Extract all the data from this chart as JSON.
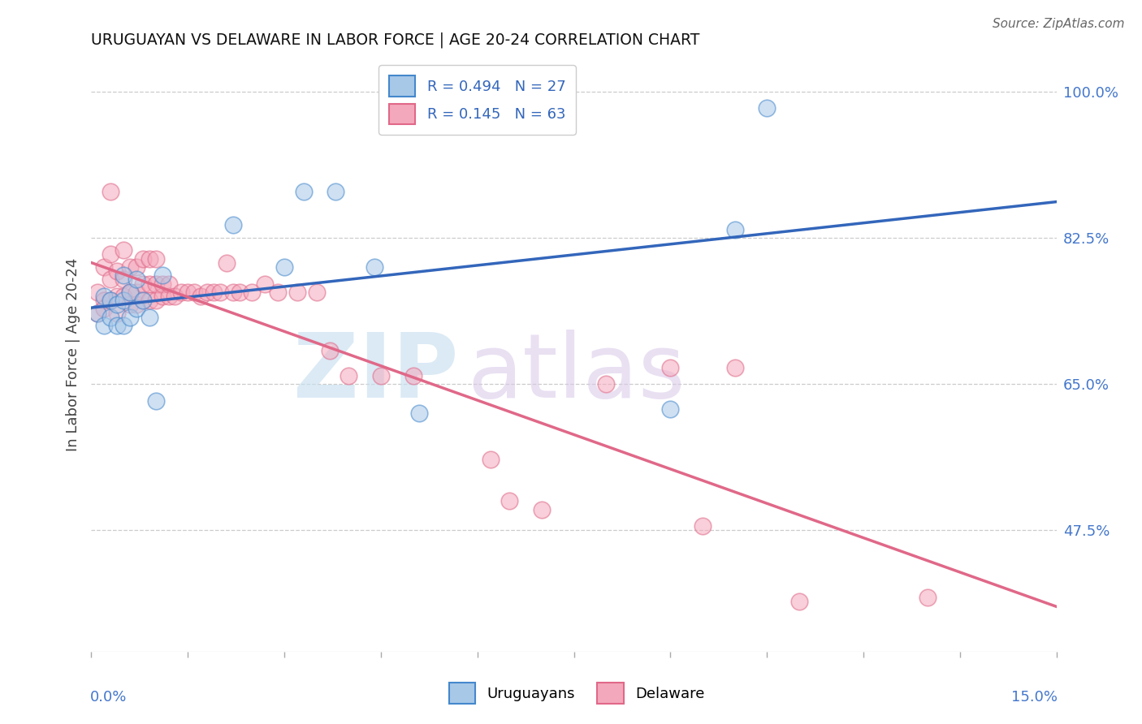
{
  "title": "URUGUAYAN VS DELAWARE IN LABOR FORCE | AGE 20-24 CORRELATION CHART",
  "source": "Source: ZipAtlas.com",
  "ylabel": "In Labor Force | Age 20-24",
  "right_ytick_values": [
    0.475,
    0.65,
    0.825,
    1.0
  ],
  "right_ytick_labels": [
    "47.5%",
    "65.0%",
    "82.5%",
    "100.0%"
  ],
  "legend_entries": [
    "R = 0.494   N = 27",
    "R = 0.145   N = 63"
  ],
  "legend_labels": [
    "Uruguayans",
    "Delaware"
  ],
  "uruguayan_color_fill": "#a8c8e8",
  "uruguayan_color_edge": "#4488cc",
  "delaware_color_fill": "#f4a8bc",
  "delaware_color_edge": "#e06888",
  "blue_line_color": "#3366bb",
  "pink_line_color": "#e06888",
  "background": "#ffffff",
  "xlim": [
    0.0,
    0.15
  ],
  "ylim": [
    0.33,
    1.04
  ],
  "uruguayan_x": [
    0.001,
    0.002,
    0.002,
    0.003,
    0.003,
    0.004,
    0.004,
    0.005,
    0.005,
    0.005,
    0.006,
    0.006,
    0.007,
    0.007,
    0.008,
    0.009,
    0.01,
    0.011,
    0.022,
    0.03,
    0.033,
    0.038,
    0.044,
    0.051,
    0.09,
    0.1,
    0.105
  ],
  "uruguayan_y": [
    0.735,
    0.72,
    0.755,
    0.73,
    0.75,
    0.72,
    0.745,
    0.72,
    0.75,
    0.78,
    0.73,
    0.76,
    0.74,
    0.775,
    0.75,
    0.73,
    0.63,
    0.78,
    0.84,
    0.79,
    0.88,
    0.88,
    0.79,
    0.615,
    0.62,
    0.835,
    0.98
  ],
  "delaware_x": [
    0.001,
    0.001,
    0.002,
    0.002,
    0.002,
    0.003,
    0.003,
    0.003,
    0.003,
    0.004,
    0.004,
    0.004,
    0.005,
    0.005,
    0.005,
    0.006,
    0.006,
    0.006,
    0.007,
    0.007,
    0.007,
    0.008,
    0.008,
    0.008,
    0.009,
    0.009,
    0.009,
    0.01,
    0.01,
    0.01,
    0.011,
    0.011,
    0.012,
    0.012,
    0.013,
    0.014,
    0.015,
    0.016,
    0.017,
    0.018,
    0.019,
    0.02,
    0.021,
    0.022,
    0.023,
    0.025,
    0.027,
    0.029,
    0.032,
    0.035,
    0.037,
    0.04,
    0.045,
    0.05,
    0.062,
    0.065,
    0.07,
    0.08,
    0.09,
    0.095,
    0.1,
    0.11,
    0.13
  ],
  "delaware_y": [
    0.735,
    0.76,
    0.75,
    0.79,
    0.74,
    0.75,
    0.775,
    0.805,
    0.88,
    0.735,
    0.755,
    0.785,
    0.755,
    0.775,
    0.81,
    0.745,
    0.76,
    0.79,
    0.745,
    0.76,
    0.79,
    0.75,
    0.77,
    0.8,
    0.75,
    0.77,
    0.8,
    0.75,
    0.77,
    0.8,
    0.755,
    0.77,
    0.755,
    0.77,
    0.755,
    0.76,
    0.76,
    0.76,
    0.755,
    0.76,
    0.76,
    0.76,
    0.795,
    0.76,
    0.76,
    0.76,
    0.77,
    0.76,
    0.76,
    0.76,
    0.69,
    0.66,
    0.66,
    0.66,
    0.56,
    0.51,
    0.5,
    0.65,
    0.67,
    0.48,
    0.67,
    0.39,
    0.395
  ]
}
